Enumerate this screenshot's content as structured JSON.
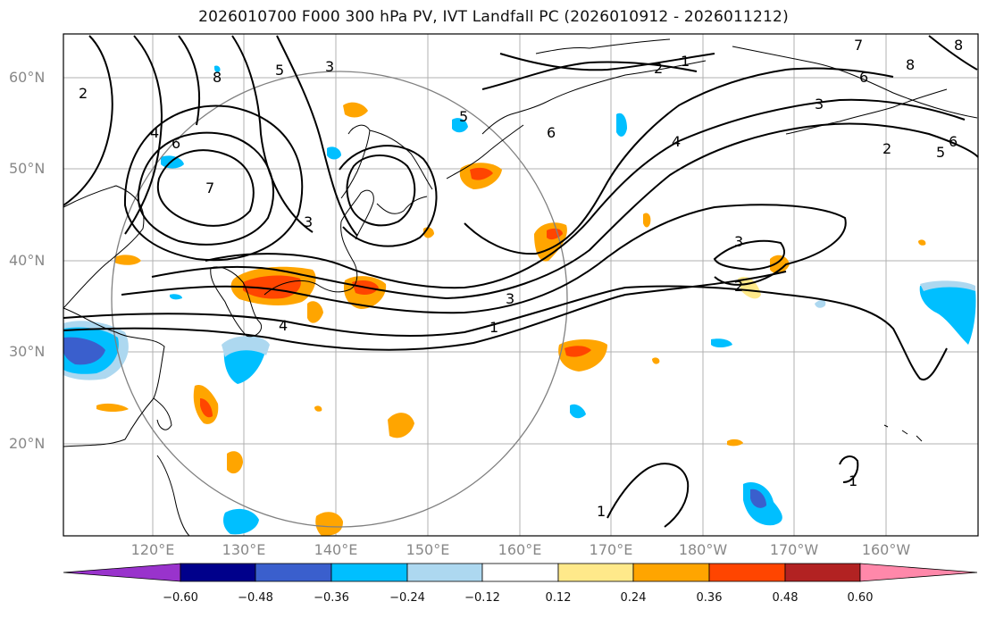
{
  "title": "2026010700 F000 300 hPa PV, IVT Landfall PC (2026010912 - 2026011212)",
  "lat_labels": [
    "60°N",
    "50°N",
    "40°N",
    "30°N",
    "20°N"
  ],
  "lon_labels": [
    "120°E",
    "130°E",
    "140°E",
    "150°E",
    "160°E",
    "170°E",
    "180°W",
    "170°W",
    "160°W"
  ],
  "contour_labels": [
    "1",
    "2",
    "3",
    "4",
    "5",
    "6",
    "7",
    "8"
  ],
  "colorbar": {
    "ticks": [
      "−0.60",
      "−0.48",
      "−0.36",
      "−0.24",
      "−0.12",
      "0.12",
      "0.24",
      "0.36",
      "0.48",
      "0.60"
    ],
    "colors": [
      "#9933cc",
      "#00008b",
      "#3a5fcd",
      "#00bfff",
      "#add8f0",
      "#ffffff",
      "#ffe98a",
      "#ffa500",
      "#ff4500",
      "#b22222",
      "#ff88aa"
    ]
  },
  "colors": {
    "coast": "#000000",
    "grid": "#b0b0b0",
    "circle": "#808080",
    "contour": "#000000"
  }
}
